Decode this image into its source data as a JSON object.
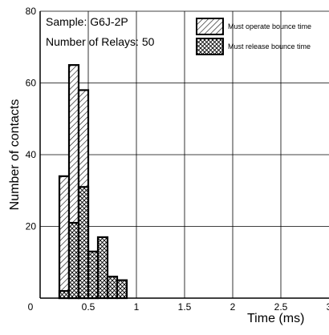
{
  "chart_data": {
    "type": "bar",
    "subtype": "histogram",
    "sample_label": "Sample: G6J-2P",
    "relays_label": "Number of Relays: 50",
    "xlabel": "Time (ms)",
    "ylabel": "Number of contacts",
    "xlim": [
      0,
      3
    ],
    "ylim": [
      0,
      80
    ],
    "x_ticks": [
      "0",
      "0.5",
      "1",
      "1.5",
      "2",
      "2.5",
      "3"
    ],
    "y_ticks": [
      "20",
      "40",
      "60",
      "80"
    ],
    "grid": true,
    "legend_position": "top-right",
    "bin_width": 0.1,
    "series": [
      {
        "name": "Must operate bounce time",
        "pattern": "diagonal-hatch",
        "bins": [
          {
            "x": 0.2,
            "value": 34
          },
          {
            "x": 0.3,
            "value": 65
          },
          {
            "x": 0.4,
            "value": 58
          },
          {
            "x": 0.5,
            "value": 11
          }
        ]
      },
      {
        "name": "Must release bounce time",
        "pattern": "cross-hatch",
        "bins": [
          {
            "x": 0.2,
            "value": 2
          },
          {
            "x": 0.3,
            "value": 21
          },
          {
            "x": 0.4,
            "value": 31
          },
          {
            "x": 0.5,
            "value": 13
          },
          {
            "x": 0.6,
            "value": 17
          },
          {
            "x": 0.7,
            "value": 6
          },
          {
            "x": 0.8,
            "value": 5
          }
        ]
      }
    ]
  }
}
